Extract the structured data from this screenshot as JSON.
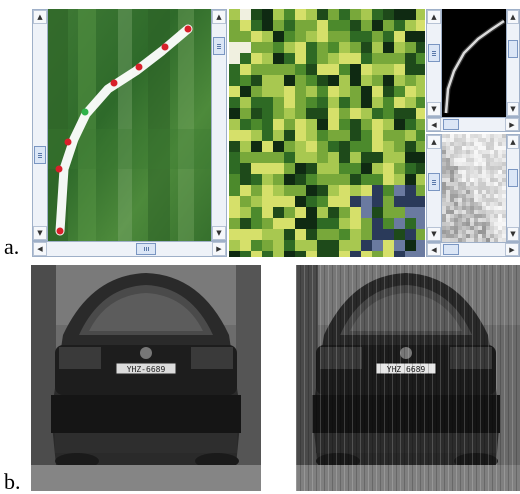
{
  "panels": {
    "a_label": "a.",
    "b_label": "b."
  },
  "colors": {
    "spline_white": "#ffffff",
    "control_point": "#d8202a",
    "active_point": "#2fb34a",
    "scroll_bg": "#eef2f8",
    "scroll_thumb": "#dbe6f6"
  },
  "icons": {
    "up": "arrow-up-icon",
    "down": "arrow-down-icon",
    "left": "arrow-left-icon",
    "right": "arrow-right-icon",
    "grip": "thumb-grip-icon"
  },
  "plate_text": {
    "left": "YHZ-6689",
    "right": "YHZ 6689"
  }
}
